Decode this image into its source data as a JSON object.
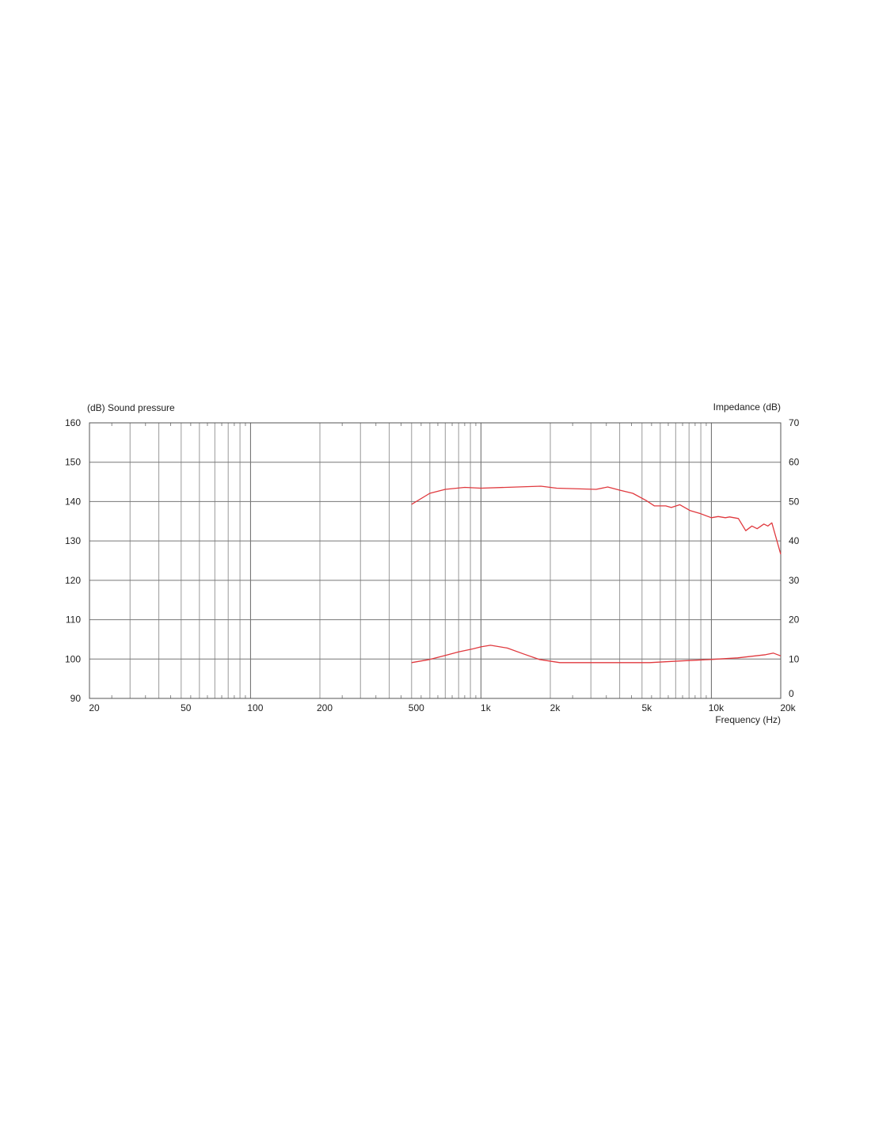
{
  "chart_data": {
    "type": "line",
    "title": "",
    "xlabel": "Frequency  (Hz)",
    "ylabel_left": "(dB)  Sound pressure",
    "ylabel_right": "Impedance  (dB)",
    "x_scale": "log",
    "xlim": [
      20,
      20000
    ],
    "ylim_left": [
      90,
      160
    ],
    "ylim_right": [
      0,
      70
    ],
    "grid": true,
    "x_ticks": [
      20,
      50,
      100,
      200,
      500,
      1000,
      2000,
      5000,
      10000,
      20000
    ],
    "x_tick_labels": [
      "20",
      "50",
      "100",
      "200",
      "500",
      "1k",
      "2k",
      "5k",
      "10k",
      "20k"
    ],
    "y_ticks_left": [
      "90",
      "100",
      "110",
      "120",
      "130",
      "140",
      "150",
      "160"
    ],
    "y_ticks_right": [
      "0",
      "10",
      "20",
      "30",
      "40",
      "50",
      "60",
      "70"
    ],
    "line_color": "#e0393e",
    "series": [
      {
        "axis": "left",
        "x": [
          500,
          600,
          700,
          850,
          1000,
          1820,
          2130,
          3160,
          3550,
          4000,
          4560,
          5200,
          5660,
          6340,
          6700,
          7300,
          8100,
          9000,
          10000,
          10700,
          11500,
          12000,
          13100,
          14100,
          15000,
          15800,
          16900,
          17600,
          18300,
          20000
        ],
        "y": [
          139.3,
          142.1,
          143.1,
          143.6,
          143.4,
          143.9,
          143.4,
          143.1,
          143.7,
          142.9,
          142.1,
          140.3,
          138.9,
          138.9,
          138.5,
          139.2,
          137.7,
          136.9,
          135.9,
          136.2,
          135.9,
          136.1,
          135.7,
          132.6,
          133.8,
          133.1,
          134.3,
          133.8,
          134.6,
          126.6
        ]
      },
      {
        "axis": "right",
        "x": [
          500,
          600,
          700,
          800,
          925,
          1000,
          1100,
          1300,
          1530,
          1790,
          2200,
          5400,
          7200,
          10000,
          13000,
          17200,
          18600,
          20000
        ],
        "y": [
          9.1,
          9.9,
          10.9,
          11.8,
          12.6,
          13.1,
          13.5,
          12.8,
          11.3,
          9.9,
          9.1,
          9.1,
          9.5,
          9.9,
          10.3,
          11.1,
          11.5,
          10.8
        ]
      }
    ]
  }
}
